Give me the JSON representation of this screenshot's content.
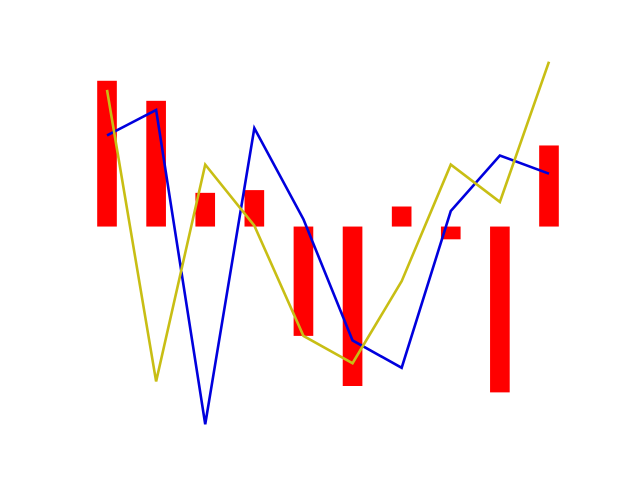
{
  "chart_data": {
    "type": "bar",
    "x": [
      0,
      1,
      2,
      3,
      4,
      5,
      6,
      7,
      8,
      9
    ],
    "values": [
      1.6,
      1.38,
      0.37,
      0.4,
      -1.2,
      -1.75,
      0.22,
      -0.14,
      -1.82,
      0.89
    ],
    "series": [
      {
        "type": "line",
        "values": [
          1.0,
          1.28,
          -2.17,
          1.08,
          0.08,
          -1.25,
          -1.55,
          0.17,
          0.78,
          0.58
        ]
      },
      {
        "type": "line",
        "values": [
          1.5,
          -1.7,
          0.68,
          0.01,
          -1.2,
          -1.5,
          -0.6,
          0.68,
          0.27,
          1.81
        ]
      }
    ],
    "xlim": [
      -0.55,
      9.55
    ],
    "ylim": [
      -2.2,
      1.85
    ],
    "axes_visible": false,
    "grid": false
  },
  "colors": {
    "bars": "#ff0000",
    "line_1": "#0000dd",
    "line_2": "#c8be14",
    "background": "#ffffff"
  }
}
